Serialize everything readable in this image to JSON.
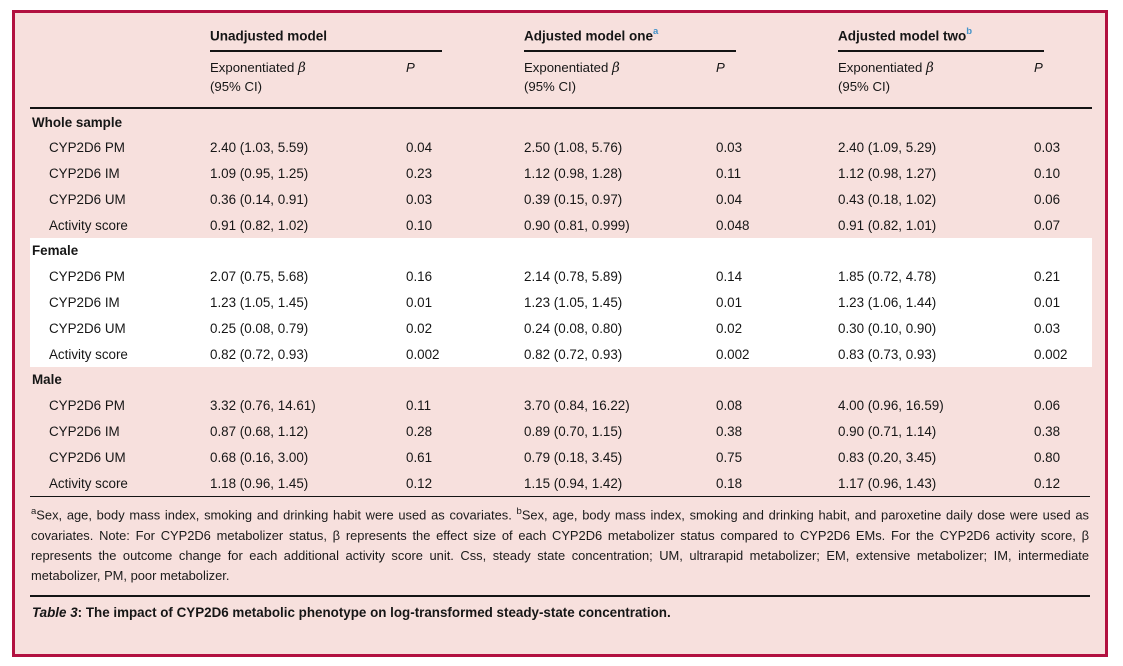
{
  "colors": {
    "frame_border": "#b21140",
    "panel_background": "#f7e0dd",
    "highlight_band": "#ffffff",
    "superscript_blue": "#4292c9",
    "rule_black": "#141414"
  },
  "header": {
    "groups": [
      {
        "label": "Unadjusted model",
        "sup": ""
      },
      {
        "label": "Adjusted model one",
        "sup": "a"
      },
      {
        "label": "Adjusted model two",
        "sup": "b"
      }
    ],
    "sub": {
      "beta_word": "Exponentiated",
      "beta_symbol": "β",
      "ci_line": "(95% CI)",
      "p_label": "P"
    }
  },
  "table": {
    "sections": [
      {
        "label": "Whole sample",
        "highlight": false,
        "rows": [
          {
            "label": "CYP2D6 PM",
            "cells": [
              "2.40 (1.03, 5.59)",
              "0.04",
              "2.50 (1.08, 5.76)",
              "0.03",
              "2.40 (1.09, 5.29)",
              "0.03"
            ]
          },
          {
            "label": "CYP2D6 IM",
            "cells": [
              "1.09 (0.95, 1.25)",
              "0.23",
              "1.12 (0.98, 1.28)",
              "0.11",
              "1.12 (0.98, 1.27)",
              "0.10"
            ]
          },
          {
            "label": "CYP2D6 UM",
            "cells": [
              "0.36 (0.14, 0.91)",
              "0.03",
              "0.39 (0.15, 0.97)",
              "0.04",
              "0.43 (0.18, 1.02)",
              "0.06"
            ]
          },
          {
            "label": "Activity score",
            "cells": [
              "0.91 (0.82, 1.02)",
              "0.10",
              "0.90 (0.81, 0.999)",
              "0.048",
              "0.91 (0.82, 1.01)",
              "0.07"
            ]
          }
        ]
      },
      {
        "label": "Female",
        "highlight": true,
        "rows": [
          {
            "label": "CYP2D6 PM",
            "cells": [
              "2.07 (0.75, 5.68)",
              "0.16",
              "2.14 (0.78, 5.89)",
              "0.14",
              "1.85 (0.72, 4.78)",
              "0.21"
            ]
          },
          {
            "label": "CYP2D6 IM",
            "cells": [
              "1.23 (1.05, 1.45)",
              "0.01",
              "1.23 (1.05, 1.45)",
              "0.01",
              "1.23 (1.06, 1.44)",
              "0.01"
            ]
          },
          {
            "label": "CYP2D6 UM",
            "cells": [
              "0.25 (0.08, 0.79)",
              "0.02",
              "0.24 (0.08, 0.80)",
              "0.02",
              "0.30 (0.10, 0.90)",
              "0.03"
            ]
          },
          {
            "label": "Activity score",
            "cells": [
              "0.82 (0.72, 0.93)",
              "0.002",
              "0.82 (0.72, 0.93)",
              "0.002",
              "0.83 (0.73, 0.93)",
              "0.002"
            ]
          }
        ]
      },
      {
        "label": "Male",
        "highlight": false,
        "rows": [
          {
            "label": "CYP2D6 PM",
            "cells": [
              "3.32 (0.76, 14.61)",
              "0.11",
              "3.70 (0.84, 16.22)",
              "0.08",
              "4.00 (0.96, 16.59)",
              "0.06"
            ]
          },
          {
            "label": "CYP2D6 IM",
            "cells": [
              "0.87 (0.68, 1.12)",
              "0.28",
              "0.89 (0.70, 1.15)",
              "0.38",
              "0.90 (0.71, 1.14)",
              "0.38"
            ]
          },
          {
            "label": "CYP2D6 UM",
            "cells": [
              "0.68 (0.16, 3.00)",
              "0.61",
              "0.79 (0.18, 3.45)",
              "0.75",
              "0.83 (0.20, 3.45)",
              "0.80"
            ]
          },
          {
            "label": "Activity score",
            "cells": [
              "1.18 (0.96, 1.45)",
              "0.12",
              "1.15 (0.94, 1.42)",
              "0.18",
              "1.17 (0.96, 1.43)",
              "0.12"
            ]
          }
        ]
      }
    ]
  },
  "footnote": {
    "sup_a": "a",
    "text_a": "Sex, age, body mass index, smoking and drinking habit were used as covariates. ",
    "sup_b": "b",
    "text_b": "Sex, age, body mass index, smoking and drinking habit, and paroxetine daily dose were used as covariates. Note: For CYP2D6 metabolizer status, β represents the effect size of each CYP2D6 metabolizer status compared to CYP2D6 EMs. For the CYP2D6 activity score, β represents the outcome change for each additional activity score unit. Css, steady state concentration; UM, ultrarapid metabolizer; EM, extensive metabolizer; IM, intermediate metabolizer, PM, poor metabolizer."
  },
  "caption": {
    "label": "Table 3",
    "separator": ": ",
    "text": "The impact of CYP2D6 metabolic phenotype on log-transformed steady-state concentration."
  }
}
